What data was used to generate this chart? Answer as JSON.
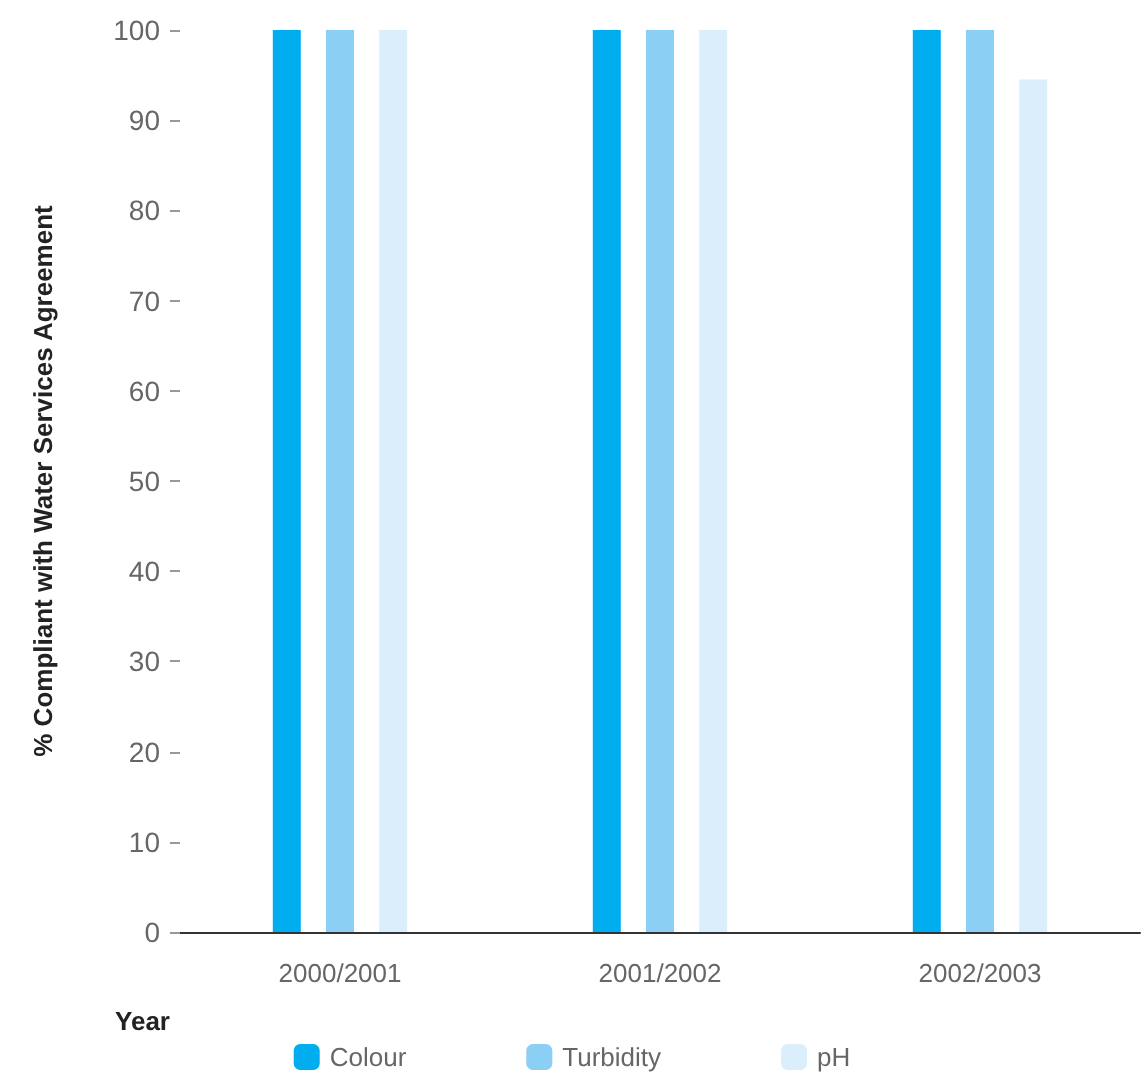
{
  "chart_data": {
    "type": "bar",
    "xlabel": "Year",
    "ylabel": "% Compliant with Water Services Agreement",
    "categories": [
      "2000/2001",
      "2001/2002",
      "2002/2003"
    ],
    "series": [
      {
        "name": "Colour",
        "color": "#00aeef",
        "values": [
          100,
          100,
          100
        ]
      },
      {
        "name": "Turbidity",
        "color": "#8ccff5",
        "values": [
          100,
          100,
          100
        ]
      },
      {
        "name": "pH",
        "color": "#dbeefc",
        "values": [
          100,
          100,
          94.5
        ]
      }
    ],
    "ylim": [
      0,
      100
    ],
    "yticks": [
      0,
      10,
      20,
      30,
      40,
      50,
      60,
      70,
      80,
      90,
      100
    ],
    "grid": false,
    "legend": "bottom"
  }
}
